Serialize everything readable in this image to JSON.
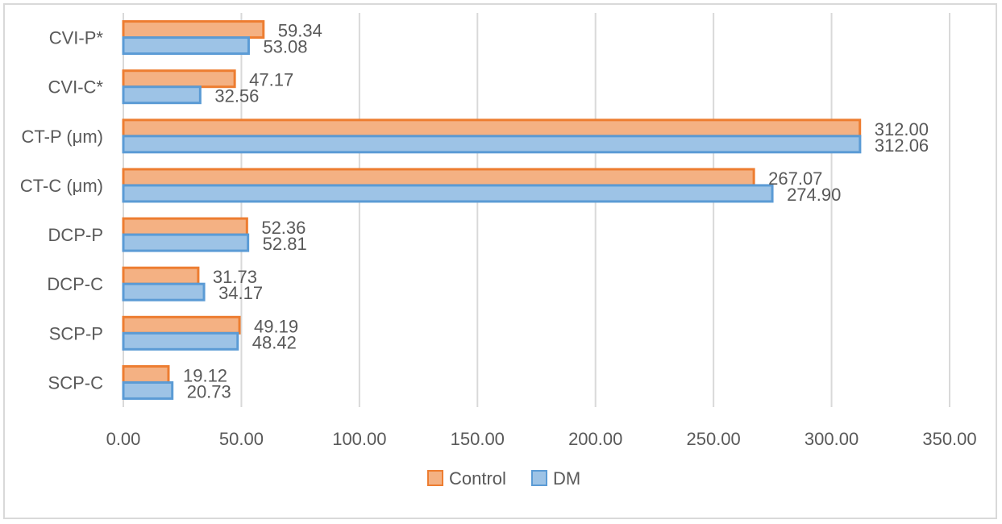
{
  "chart_data": {
    "type": "bar",
    "orientation": "horizontal",
    "categories": [
      "SCP-C",
      "SCP-P",
      "DCP-C",
      "DCP-P",
      "CT-C (μm)",
      "CT-P (μm)",
      "CVI-C*",
      "CVI-P*"
    ],
    "series": [
      {
        "name": "Control",
        "values": [
          19.12,
          49.19,
          31.73,
          52.36,
          267.07,
          312.0,
          47.17,
          59.34
        ],
        "labels": [
          "19.12",
          "49.19",
          "31.73",
          "52.36",
          "267.07",
          "312.00",
          "47.17",
          "59.34"
        ],
        "fill": "#f4b183",
        "stroke": "#ed7d31"
      },
      {
        "name": "DM",
        "values": [
          20.73,
          48.42,
          34.17,
          52.81,
          274.9,
          312.06,
          32.56,
          53.08
        ],
        "labels": [
          "20.73",
          "48.42",
          "34.17",
          "52.81",
          "274.90",
          "312.06",
          "32.56",
          "53.08"
        ],
        "fill": "#9dc3e6",
        "stroke": "#5b9bd5"
      }
    ],
    "xlim": [
      0,
      350
    ],
    "xticks": [
      "0.00",
      "50.00",
      "100.00",
      "150.00",
      "200.00",
      "250.00",
      "300.00",
      "350.00"
    ],
    "grid": true,
    "legend_position": "bottom"
  }
}
